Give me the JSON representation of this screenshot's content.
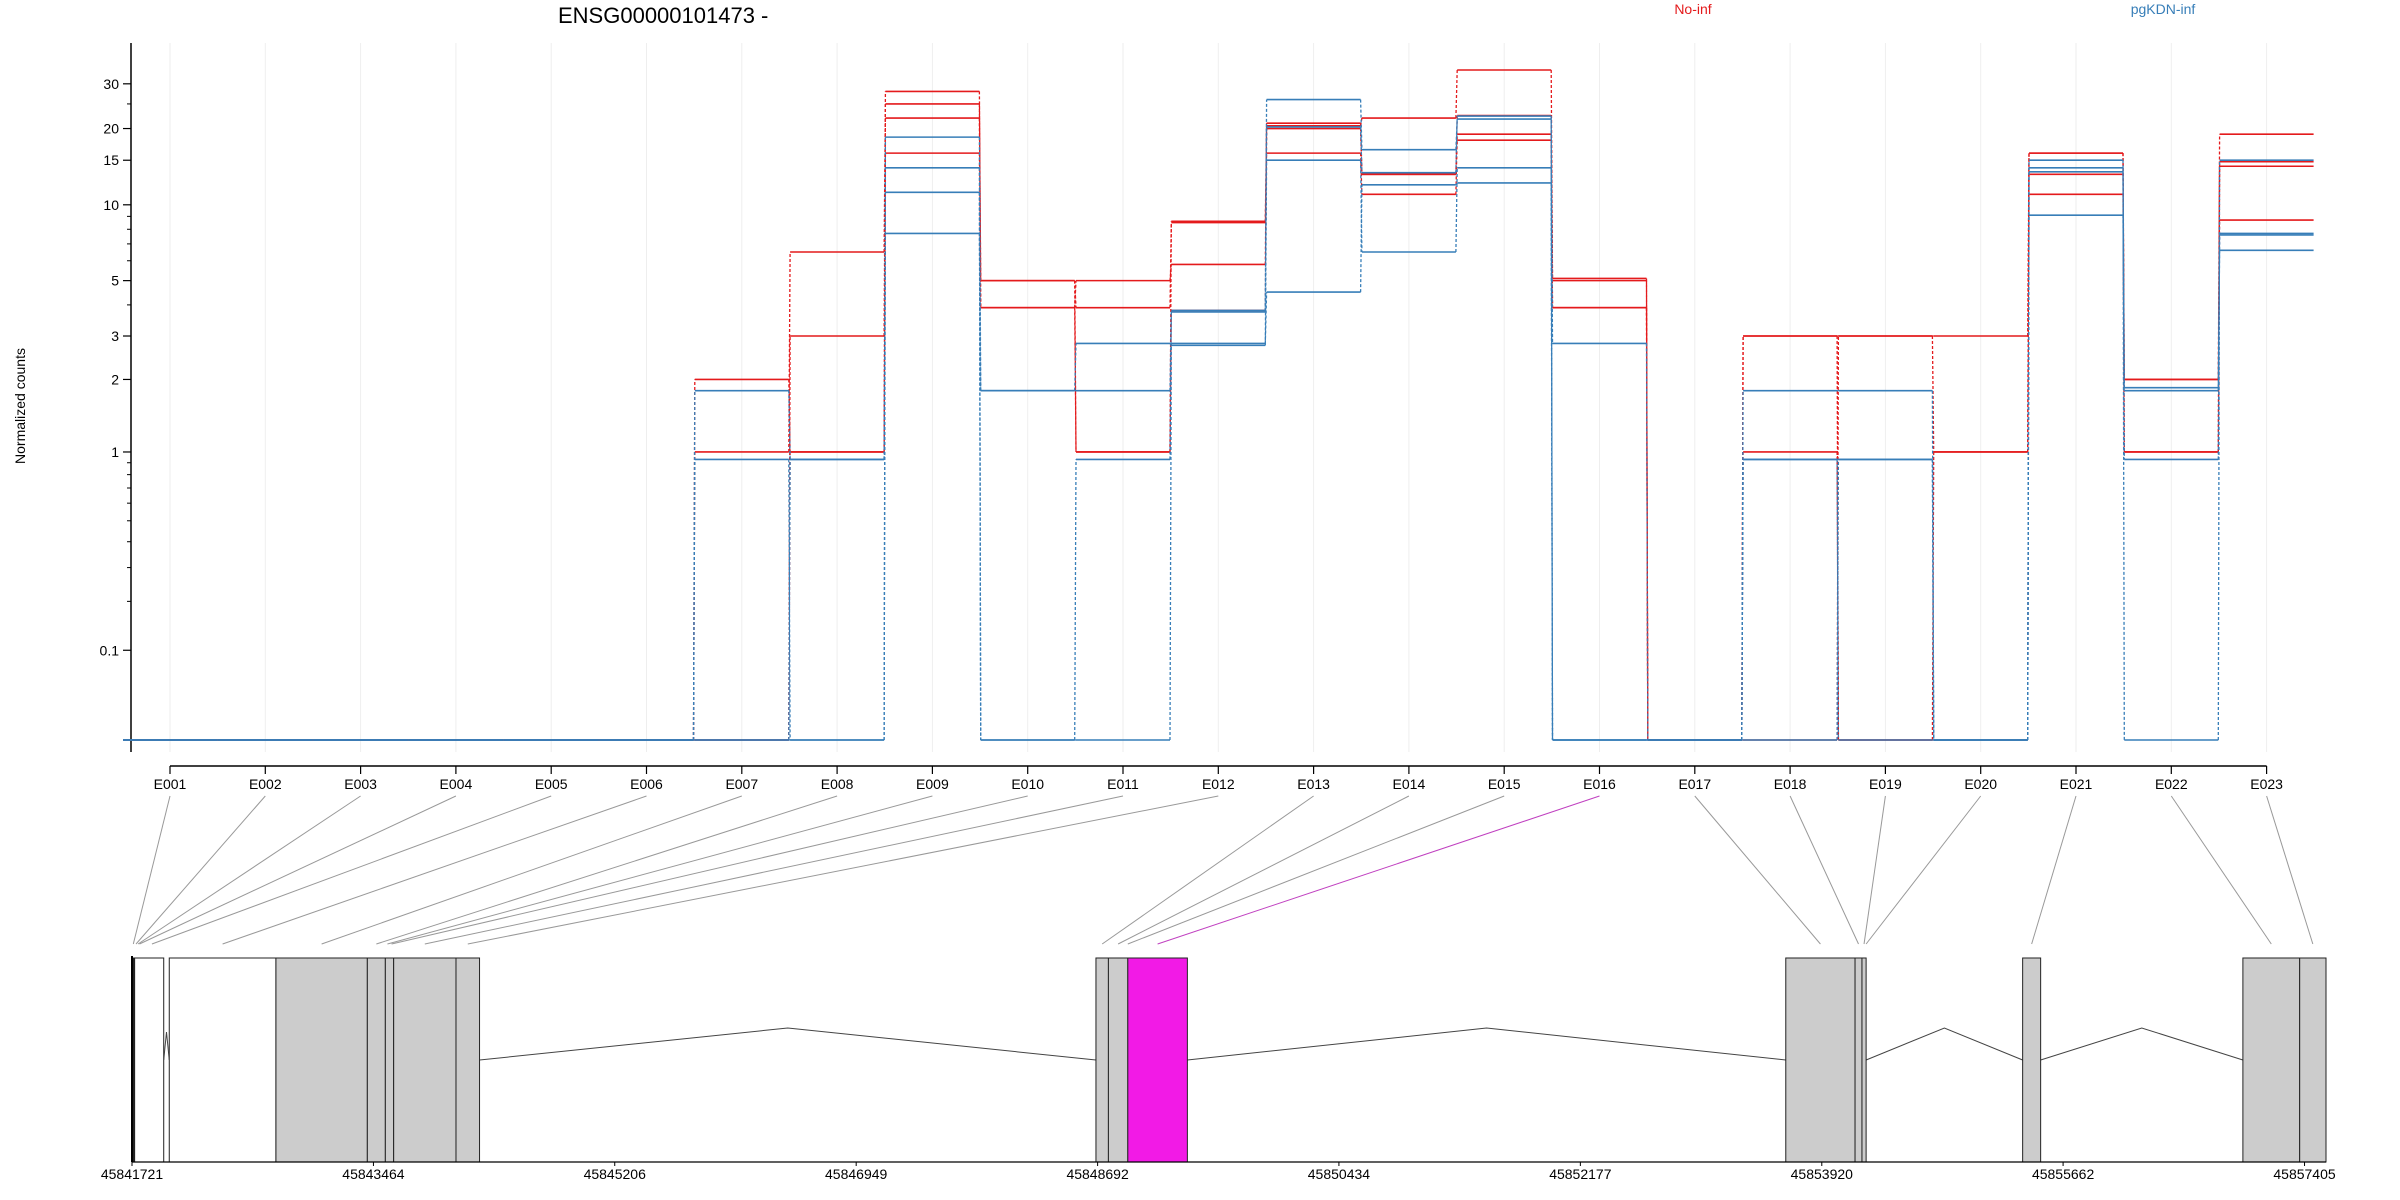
{
  "chart_data": {
    "type": "line",
    "title": "ENSG00000101473 -",
    "ylabel": "Normalized counts",
    "y_scale": "log(count + 0.08)",
    "y_ticks": [
      0.1,
      1,
      2,
      3,
      5,
      10,
      15,
      20,
      30
    ],
    "y_tick_labels": [
      "0.1",
      "1",
      "2",
      "3",
      "5",
      "10",
      "15",
      "20",
      "30"
    ],
    "categories": [
      "E001",
      "E002",
      "E003",
      "E004",
      "E005",
      "E006",
      "E007",
      "E008",
      "E009",
      "E010",
      "E011",
      "E012",
      "E013",
      "E014",
      "E015",
      "E016",
      "E017",
      "E018",
      "E019",
      "E020",
      "E021",
      "E022",
      "E023"
    ],
    "legend": {
      "position": "top",
      "entries": [
        {
          "name": "No-inf",
          "color": "#e41a1c"
        },
        {
          "name": "pgKDN-inf",
          "color": "#377eb8"
        }
      ]
    },
    "series": [
      {
        "group": "No-inf",
        "color": "#e41a1c",
        "values": [
          0,
          0,
          0,
          0,
          0,
          0,
          2.0,
          1.0,
          28,
          5.0,
          1.0,
          8.6,
          20.5,
          22,
          34,
          5.0,
          0,
          3.0,
          3.0,
          3.0,
          16,
          2.0,
          19
        ]
      },
      {
        "group": "No-inf",
        "color": "#e41a1c",
        "values": [
          0,
          0,
          0,
          0,
          0,
          0,
          1.0,
          6.5,
          25,
          3.9,
          5.0,
          5.8,
          21,
          13.2,
          22.5,
          3.9,
          0,
          1.0,
          0,
          1.0,
          16,
          1.0,
          14.8
        ]
      },
      {
        "group": "No-inf",
        "color": "#e41a1c",
        "values": [
          0,
          0,
          0,
          0,
          0,
          0,
          0,
          3.0,
          22,
          5.0,
          3.9,
          8.5,
          16,
          11,
          19,
          5.1,
          0,
          0,
          3.0,
          1.0,
          13.2,
          2.0,
          8.7
        ]
      },
      {
        "group": "No-inf",
        "color": "#e41a1c",
        "values": [
          0,
          0,
          0,
          0,
          0,
          0,
          0,
          1.0,
          16,
          3.9,
          1.0,
          3.8,
          20,
          13.2,
          18,
          3.9,
          0,
          3.0,
          0,
          0,
          11,
          1.0,
          14.2
        ]
      },
      {
        "group": "pgKDN-inf",
        "color": "#377eb8",
        "values": [
          0,
          0,
          0,
          0,
          0,
          0,
          0.93,
          0,
          18.5,
          1.8,
          1.8,
          3.75,
          26,
          16.5,
          21.8,
          2.8,
          0,
          1.8,
          1.8,
          0,
          9.1,
          1.8,
          7.7
        ]
      },
      {
        "group": "pgKDN-inf",
        "color": "#377eb8",
        "values": [
          0,
          0,
          0,
          0,
          0,
          0,
          0,
          0.93,
          7.7,
          1.8,
          2.8,
          2.75,
          15,
          6.5,
          14,
          0,
          0,
          0.93,
          0,
          0,
          14,
          0.93,
          7.6
        ]
      },
      {
        "group": "pgKDN-inf",
        "color": "#377eb8",
        "values": [
          0,
          0,
          0,
          0,
          0,
          0,
          1.8,
          0.93,
          11.2,
          0,
          0,
          2.8,
          4.5,
          12,
          12.2,
          0,
          0,
          0,
          0.93,
          0,
          15,
          1.85,
          6.6
        ]
      },
      {
        "group": "pgKDN-inf",
        "color": "#377eb8",
        "values": [
          0,
          0,
          0,
          0,
          0,
          0,
          0,
          0,
          14,
          0,
          0.93,
          3.8,
          20.3,
          13.4,
          22.4,
          0,
          0,
          0.93,
          0.93,
          0,
          13.5,
          0,
          15
        ]
      }
    ],
    "genome_axis": {
      "tick_labels": [
        "45841721",
        "45843464",
        "45845206",
        "45846949",
        "45848692",
        "45850434",
        "45852177",
        "45853920",
        "45855662",
        "45857405"
      ],
      "tick_values": [
        45841721,
        45843464,
        45845206,
        45846949,
        45848692,
        45850434,
        45852177,
        45853920,
        45855662,
        45857405
      ],
      "range": [
        45841721,
        45857560
      ]
    },
    "gene_model": {
      "highlighted_exon": "E016",
      "highlight_color": "#f21ae6",
      "exon_fill": "#cccccc",
      "highlight_connector_color": "#c040c0",
      "exon_bins": [
        {
          "id": "E001",
          "start": 45841721,
          "end": 45841740
        },
        {
          "id": "E002",
          "start": 45841740,
          "end": 45841760
        },
        {
          "id": "E003",
          "start": 45841760,
          "end": 45841770
        },
        {
          "id": "E004",
          "start": 45841770,
          "end": 45841780
        },
        {
          "id": "E005",
          "start": 45841780,
          "end": 45841950
        },
        {
          "id": "E006",
          "start": 45841990,
          "end": 45842760
        },
        {
          "id": "E007",
          "start": 45842760,
          "end": 45843420
        },
        {
          "id": "E008",
          "start": 45843420,
          "end": 45843550
        },
        {
          "id": "E009",
          "start": 45843550,
          "end": 45843580
        },
        {
          "id": "E010",
          "start": 45843580,
          "end": 45843610
        },
        {
          "id": "E011",
          "start": 45843610,
          "end": 45844060
        },
        {
          "id": "E012",
          "start": 45844060,
          "end": 45844230
        },
        {
          "id": "E013",
          "start": 45848680,
          "end": 45848770
        },
        {
          "id": "E014",
          "start": 45848770,
          "end": 45848910
        },
        {
          "id": "E015",
          "start": 45848910,
          "end": 45848910
        },
        {
          "id": "E016",
          "start": 45848910,
          "end": 45849340
        },
        {
          "id": "E017",
          "start": 45853660,
          "end": 45854160
        },
        {
          "id": "E018",
          "start": 45854160,
          "end": 45854210
        },
        {
          "id": "E019",
          "start": 45854210,
          "end": 45854240
        },
        {
          "id": "E020",
          "start": 45854240,
          "end": 45854240
        },
        {
          "id": "E021",
          "start": 45855370,
          "end": 45855500
        },
        {
          "id": "E022",
          "start": 45856960,
          "end": 45857370
        },
        {
          "id": "E023",
          "start": 45857370,
          "end": 45857560
        }
      ],
      "blocks": [
        {
          "start": 45841721,
          "end": 45841740,
          "fill": "#222222"
        },
        {
          "start": 45841740,
          "end": 45841950,
          "fill": "#ffffff"
        },
        {
          "start": 45841990,
          "end": 45842760,
          "fill": "#ffffff"
        },
        {
          "start": 45842760,
          "end": 45843420,
          "fill": "#cccccc"
        },
        {
          "start": 45843420,
          "end": 45843550,
          "fill": "#cccccc"
        },
        {
          "start": 45843550,
          "end": 45843610,
          "fill": "#cccccc"
        },
        {
          "start": 45843610,
          "end": 45844060,
          "fill": "#cccccc"
        },
        {
          "start": 45844060,
          "end": 45844230,
          "fill": "#cccccc"
        },
        {
          "start": 45848680,
          "end": 45848770,
          "fill": "#cccccc"
        },
        {
          "start": 45848770,
          "end": 45848910,
          "fill": "#cccccc"
        },
        {
          "start": 45848910,
          "end": 45849340,
          "fill": "#f21ae6"
        },
        {
          "start": 45853660,
          "end": 45854160,
          "fill": "#cccccc"
        },
        {
          "start": 45854160,
          "end": 45854210,
          "fill": "#cccccc"
        },
        {
          "start": 45854210,
          "end": 45854240,
          "fill": "#cccccc"
        },
        {
          "start": 45855370,
          "end": 45855500,
          "fill": "#cccccc"
        },
        {
          "start": 45856960,
          "end": 45857370,
          "fill": "#cccccc"
        },
        {
          "start": 45857370,
          "end": 45857560,
          "fill": "#cccccc"
        }
      ],
      "introns": [
        {
          "start": 45844230,
          "end": 45848680
        },
        {
          "start": 45849340,
          "end": 45853660
        },
        {
          "start": 45854240,
          "end": 45855370
        },
        {
          "start": 45855500,
          "end": 45856960
        }
      ]
    }
  }
}
